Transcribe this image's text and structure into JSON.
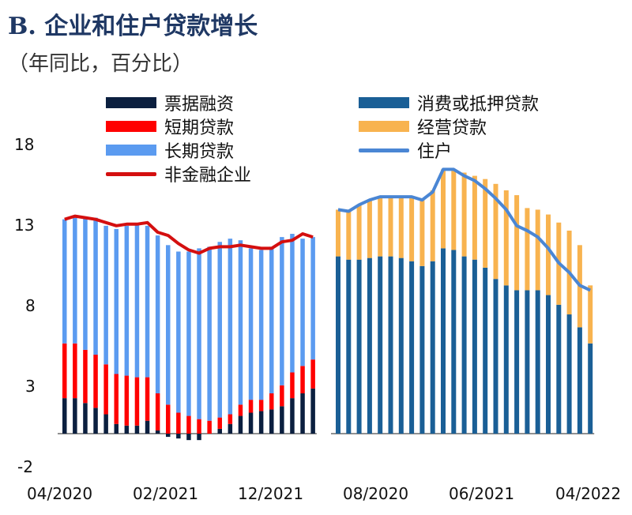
{
  "title": "B. 企业和住户贷款增长",
  "subtitle": "（年同比，百分比）",
  "colors": {
    "bill": "#0b1f3f",
    "short": "#ff0000",
    "long": "#5b9bf0",
    "corp_line": "#d40f0f",
    "consumer": "#1a5f96",
    "business": "#f8b34f",
    "household_line": "#4a86d4"
  },
  "legend": [
    {
      "label": "票据融资",
      "kind": "bar",
      "color": "#0b1f3f"
    },
    {
      "label": "短期贷款",
      "kind": "bar",
      "color": "#ff0000"
    },
    {
      "label": "长期贷款",
      "kind": "bar",
      "color": "#5b9bf0"
    },
    {
      "label": "非金融企业",
      "kind": "line",
      "color": "#d40f0f"
    },
    {
      "label": "消费或抵押贷款",
      "kind": "bar",
      "color": "#1a5f96"
    },
    {
      "label": "经营贷款",
      "kind": "bar",
      "color": "#f8b34f"
    },
    {
      "label": "住户",
      "kind": "line",
      "color": "#4a86d4"
    }
  ],
  "chart_data": {
    "type": "bar",
    "ylim": [
      -2,
      18
    ],
    "yticks": [
      "18",
      "13",
      "8",
      "3",
      "-2"
    ],
    "panels": [
      {
        "name": "企业",
        "xticks": [
          "04/2020",
          "02/2021",
          "12/2021"
        ],
        "series": [
          {
            "name": "票据融资",
            "values": [
              2.2,
              2.2,
              1.9,
              1.6,
              1.2,
              0.6,
              0.5,
              0.5,
              0.8,
              0.2,
              -0.2,
              -0.3,
              -0.4,
              -0.4,
              0.0,
              0.3,
              0.6,
              1.1,
              1.3,
              1.4,
              1.5,
              1.7,
              2.2,
              2.5,
              2.8
            ]
          },
          {
            "name": "短期贷款",
            "values": [
              3.4,
              3.4,
              3.3,
              3.3,
              3.1,
              3.1,
              3.1,
              3.0,
              2.7,
              2.3,
              1.8,
              1.3,
              1.1,
              0.9,
              0.8,
              0.7,
              0.6,
              0.7,
              0.8,
              0.7,
              1.0,
              1.3,
              1.6,
              1.7,
              1.8
            ]
          },
          {
            "name": "长期贷款",
            "values": [
              7.7,
              7.9,
              8.2,
              8.5,
              8.6,
              9.0,
              9.3,
              9.5,
              9.4,
              9.8,
              9.9,
              10.0,
              10.2,
              10.6,
              10.8,
              10.9,
              10.9,
              10.2,
              9.4,
              9.3,
              9.1,
              9.2,
              8.6,
              7.9,
              7.6
            ]
          }
        ],
        "line": {
          "name": "非金融企业",
          "values": [
            13.3,
            13.5,
            13.4,
            13.3,
            13.1,
            12.9,
            13.0,
            13.0,
            13.1,
            12.5,
            12.3,
            11.8,
            11.4,
            11.2,
            11.5,
            11.6,
            11.6,
            11.7,
            11.6,
            11.5,
            11.5,
            11.9,
            12.0,
            12.4,
            12.2
          ]
        }
      },
      {
        "name": "住户",
        "xticks": [
          "08/2020",
          "06/2021",
          "04/2022"
        ],
        "series": [
          {
            "name": "消费或抵押贷款",
            "values": [
              11.0,
              10.8,
              10.8,
              10.9,
              11.0,
              11.0,
              10.9,
              10.7,
              10.4,
              10.7,
              11.5,
              11.4,
              11.0,
              10.8,
              10.3,
              9.6,
              9.2,
              8.9,
              8.9,
              8.9,
              8.6,
              8.0,
              7.4,
              6.6,
              5.6
            ]
          },
          {
            "name": "经营贷款",
            "values": [
              2.9,
              3.1,
              3.4,
              3.6,
              3.7,
              3.7,
              3.8,
              4.0,
              4.1,
              4.4,
              4.9,
              5.0,
              5.2,
              5.2,
              5.5,
              5.9,
              5.9,
              5.9,
              5.1,
              5.0,
              5.0,
              5.1,
              5.2,
              5.1,
              3.6
            ]
          }
        ],
        "line": {
          "name": "住户",
          "values": [
            13.9,
            13.8,
            14.2,
            14.5,
            14.7,
            14.7,
            14.7,
            14.7,
            14.5,
            15.0,
            16.4,
            16.4,
            16.0,
            15.7,
            15.2,
            14.6,
            13.9,
            12.9,
            12.6,
            12.2,
            11.5,
            10.6,
            10.0,
            9.2,
            8.9
          ]
        }
      }
    ]
  }
}
